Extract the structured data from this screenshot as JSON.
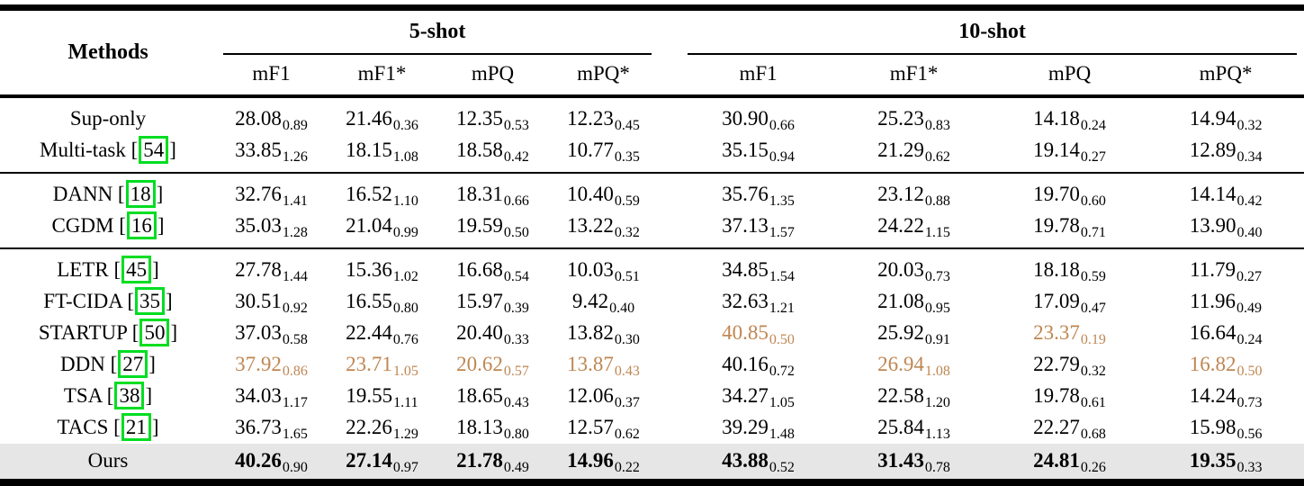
{
  "colors": {
    "page_bg": "#ffffff",
    "text": "#000000",
    "second_best": "#bf8652",
    "citation_box": "#00dd22",
    "ours_row_bg": "#e6e6e6"
  },
  "table": {
    "methods_header": "Methods",
    "groups": [
      {
        "label": "5-shot"
      },
      {
        "label": "10-shot"
      }
    ],
    "sub_headers": [
      "mF1",
      "mF1*",
      "mPQ",
      "mPQ*"
    ],
    "row_groups": [
      {
        "rows": [
          {
            "method": "Sup-only",
            "citation": null,
            "highlight": false,
            "values": [
              {
                "v": "28.08",
                "s": "0.89",
                "hl": "none"
              },
              {
                "v": "21.46",
                "s": "0.36",
                "hl": "none"
              },
              {
                "v": "12.35",
                "s": "0.53",
                "hl": "none"
              },
              {
                "v": "12.23",
                "s": "0.45",
                "hl": "none"
              },
              {
                "v": "30.90",
                "s": "0.66",
                "hl": "none"
              },
              {
                "v": "25.23",
                "s": "0.83",
                "hl": "none"
              },
              {
                "v": "14.18",
                "s": "0.24",
                "hl": "none"
              },
              {
                "v": "14.94",
                "s": "0.32",
                "hl": "none"
              }
            ]
          },
          {
            "method": "Multi-task",
            "citation": "54",
            "highlight": false,
            "values": [
              {
                "v": "33.85",
                "s": "1.26",
                "hl": "none"
              },
              {
                "v": "18.15",
                "s": "1.08",
                "hl": "none"
              },
              {
                "v": "18.58",
                "s": "0.42",
                "hl": "none"
              },
              {
                "v": "10.77",
                "s": "0.35",
                "hl": "none"
              },
              {
                "v": "35.15",
                "s": "0.94",
                "hl": "none"
              },
              {
                "v": "21.29",
                "s": "0.62",
                "hl": "none"
              },
              {
                "v": "19.14",
                "s": "0.27",
                "hl": "none"
              },
              {
                "v": "12.89",
                "s": "0.34",
                "hl": "none"
              }
            ]
          }
        ]
      },
      {
        "rows": [
          {
            "method": "DANN",
            "citation": "18",
            "highlight": false,
            "values": [
              {
                "v": "32.76",
                "s": "1.41",
                "hl": "none"
              },
              {
                "v": "16.52",
                "s": "1.10",
                "hl": "none"
              },
              {
                "v": "18.31",
                "s": "0.66",
                "hl": "none"
              },
              {
                "v": "10.40",
                "s": "0.59",
                "hl": "none"
              },
              {
                "v": "35.76",
                "s": "1.35",
                "hl": "none"
              },
              {
                "v": "23.12",
                "s": "0.88",
                "hl": "none"
              },
              {
                "v": "19.70",
                "s": "0.60",
                "hl": "none"
              },
              {
                "v": "14.14",
                "s": "0.42",
                "hl": "none"
              }
            ]
          },
          {
            "method": "CGDM",
            "citation": "16",
            "highlight": false,
            "values": [
              {
                "v": "35.03",
                "s": "1.28",
                "hl": "none"
              },
              {
                "v": "21.04",
                "s": "0.99",
                "hl": "none"
              },
              {
                "v": "19.59",
                "s": "0.50",
                "hl": "none"
              },
              {
                "v": "13.22",
                "s": "0.32",
                "hl": "none"
              },
              {
                "v": "37.13",
                "s": "1.57",
                "hl": "none"
              },
              {
                "v": "24.22",
                "s": "1.15",
                "hl": "none"
              },
              {
                "v": "19.78",
                "s": "0.71",
                "hl": "none"
              },
              {
                "v": "13.90",
                "s": "0.40",
                "hl": "none"
              }
            ]
          }
        ]
      },
      {
        "rows": [
          {
            "method": "LETR",
            "citation": "45",
            "highlight": false,
            "values": [
              {
                "v": "27.78",
                "s": "1.44",
                "hl": "none"
              },
              {
                "v": "15.36",
                "s": "1.02",
                "hl": "none"
              },
              {
                "v": "16.68",
                "s": "0.54",
                "hl": "none"
              },
              {
                "v": "10.03",
                "s": "0.51",
                "hl": "none"
              },
              {
                "v": "34.85",
                "s": "1.54",
                "hl": "none"
              },
              {
                "v": "20.03",
                "s": "0.73",
                "hl": "none"
              },
              {
                "v": "18.18",
                "s": "0.59",
                "hl": "none"
              },
              {
                "v": "11.79",
                "s": "0.27",
                "hl": "none"
              }
            ]
          },
          {
            "method": "FT-CIDA",
            "citation": "35",
            "highlight": false,
            "values": [
              {
                "v": "30.51",
                "s": "0.92",
                "hl": "none"
              },
              {
                "v": "16.55",
                "s": "0.80",
                "hl": "none"
              },
              {
                "v": "15.97",
                "s": "0.39",
                "hl": "none"
              },
              {
                "v": "9.42",
                "s": "0.40",
                "hl": "none"
              },
              {
                "v": "32.63",
                "s": "1.21",
                "hl": "none"
              },
              {
                "v": "21.08",
                "s": "0.95",
                "hl": "none"
              },
              {
                "v": "17.09",
                "s": "0.47",
                "hl": "none"
              },
              {
                "v": "11.96",
                "s": "0.49",
                "hl": "none"
              }
            ]
          },
          {
            "method": "STARTUP",
            "citation": "50",
            "highlight": false,
            "values": [
              {
                "v": "37.03",
                "s": "0.58",
                "hl": "none"
              },
              {
                "v": "22.44",
                "s": "0.76",
                "hl": "none"
              },
              {
                "v": "20.40",
                "s": "0.33",
                "hl": "none"
              },
              {
                "v": "13.82",
                "s": "0.30",
                "hl": "none"
              },
              {
                "v": "40.85",
                "s": "0.50",
                "hl": "second_best"
              },
              {
                "v": "25.92",
                "s": "0.91",
                "hl": "none"
              },
              {
                "v": "23.37",
                "s": "0.19",
                "hl": "second_best"
              },
              {
                "v": "16.64",
                "s": "0.24",
                "hl": "none"
              }
            ]
          },
          {
            "method": "DDN",
            "citation": "27",
            "highlight": false,
            "values": [
              {
                "v": "37.92",
                "s": "0.86",
                "hl": "second_best"
              },
              {
                "v": "23.71",
                "s": "1.05",
                "hl": "second_best"
              },
              {
                "v": "20.62",
                "s": "0.57",
                "hl": "second_best"
              },
              {
                "v": "13.87",
                "s": "0.43",
                "hl": "second_best"
              },
              {
                "v": "40.16",
                "s": "0.72",
                "hl": "none"
              },
              {
                "v": "26.94",
                "s": "1.08",
                "hl": "second_best"
              },
              {
                "v": "22.79",
                "s": "0.32",
                "hl": "none"
              },
              {
                "v": "16.82",
                "s": "0.50",
                "hl": "second_best"
              }
            ]
          },
          {
            "method": "TSA",
            "citation": "38",
            "highlight": false,
            "values": [
              {
                "v": "34.03",
                "s": "1.17",
                "hl": "none"
              },
              {
                "v": "19.55",
                "s": "1.11",
                "hl": "none"
              },
              {
                "v": "18.65",
                "s": "0.43",
                "hl": "none"
              },
              {
                "v": "12.06",
                "s": "0.37",
                "hl": "none"
              },
              {
                "v": "34.27",
                "s": "1.05",
                "hl": "none"
              },
              {
                "v": "22.58",
                "s": "1.20",
                "hl": "none"
              },
              {
                "v": "19.78",
                "s": "0.61",
                "hl": "none"
              },
              {
                "v": "14.24",
                "s": "0.73",
                "hl": "none"
              }
            ]
          },
          {
            "method": "TACS",
            "citation": "21",
            "highlight": false,
            "values": [
              {
                "v": "36.73",
                "s": "1.65",
                "hl": "none"
              },
              {
                "v": "22.26",
                "s": "1.29",
                "hl": "none"
              },
              {
                "v": "18.13",
                "s": "0.80",
                "hl": "none"
              },
              {
                "v": "12.57",
                "s": "0.62",
                "hl": "none"
              },
              {
                "v": "39.29",
                "s": "1.48",
                "hl": "none"
              },
              {
                "v": "25.84",
                "s": "1.13",
                "hl": "none"
              },
              {
                "v": "22.27",
                "s": "0.68",
                "hl": "none"
              },
              {
                "v": "15.98",
                "s": "0.56",
                "hl": "none"
              }
            ]
          },
          {
            "method": "Ours",
            "citation": null,
            "highlight": true,
            "values": [
              {
                "v": "40.26",
                "s": "0.90",
                "hl": "best"
              },
              {
                "v": "27.14",
                "s": "0.97",
                "hl": "best"
              },
              {
                "v": "21.78",
                "s": "0.49",
                "hl": "best"
              },
              {
                "v": "14.96",
                "s": "0.22",
                "hl": "best"
              },
              {
                "v": "43.88",
                "s": "0.52",
                "hl": "best"
              },
              {
                "v": "31.43",
                "s": "0.78",
                "hl": "best"
              },
              {
                "v": "24.81",
                "s": "0.26",
                "hl": "best"
              },
              {
                "v": "19.35",
                "s": "0.33",
                "hl": "best"
              }
            ]
          }
        ]
      }
    ]
  }
}
